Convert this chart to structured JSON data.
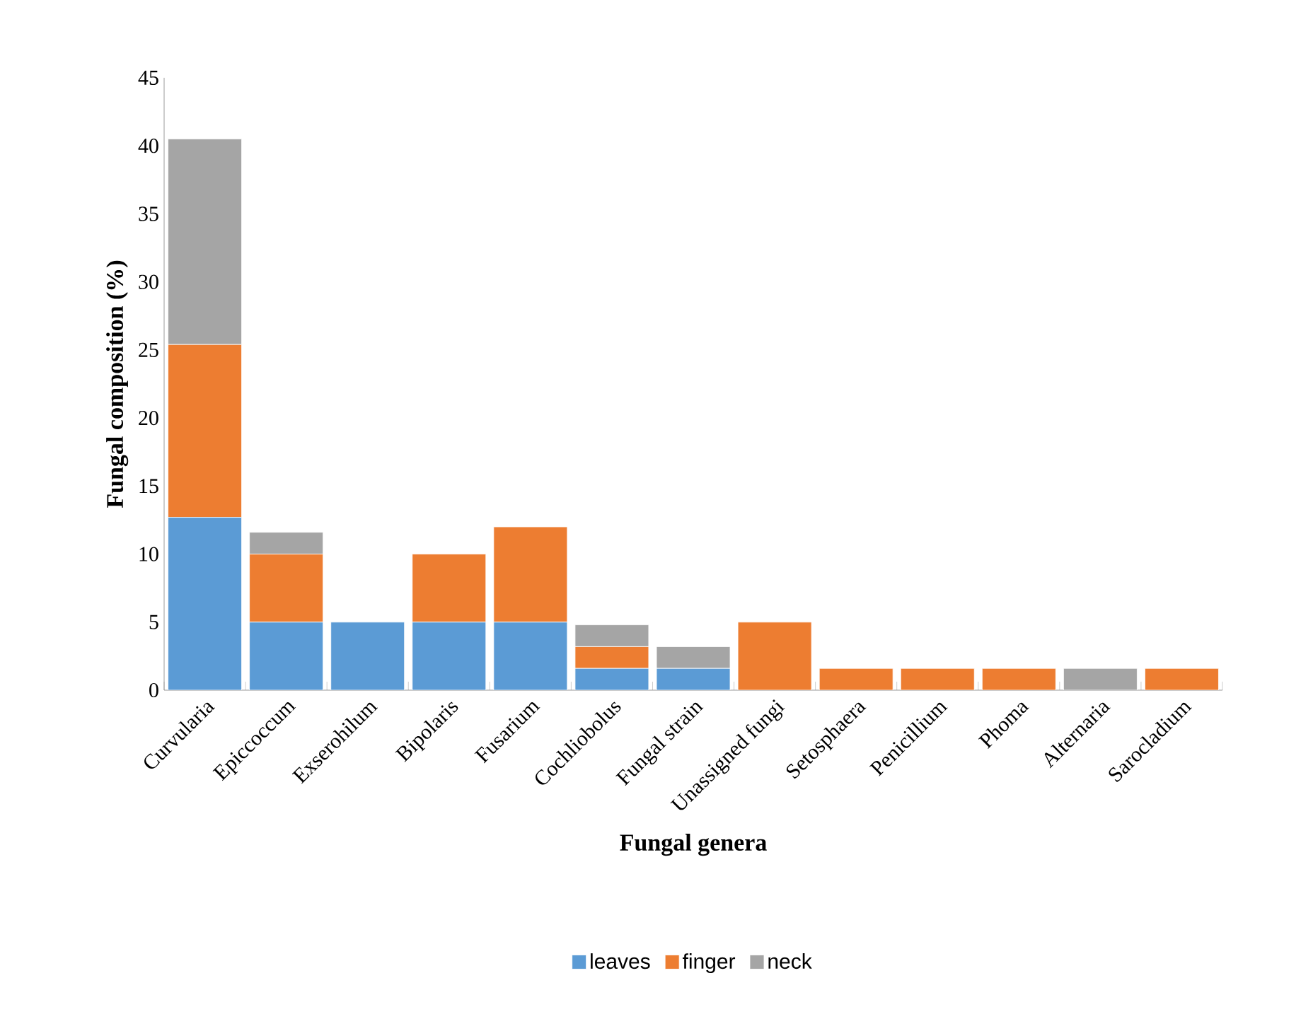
{
  "chart_data": {
    "type": "bar",
    "stacked": true,
    "xlabel": "Fungal genera",
    "ylabel": "Fungal composition (%)",
    "categories": [
      "Curvularia",
      "Epiccoccum",
      "Exserohilum",
      "Bipolaris",
      "Fusarium",
      "Cochliobolus",
      "Fungal strain",
      "Unassigned fungi",
      "Setosphaera",
      "Penicillium",
      "Phoma",
      "Alternaria",
      "Sarocladium"
    ],
    "series": [
      {
        "name": "leaves",
        "color": "#5b9bd5",
        "values": [
          12.7,
          5,
          5,
          5,
          5,
          1.6,
          1.6,
          0,
          0,
          0,
          0,
          0,
          0
        ]
      },
      {
        "name": "finger",
        "color": "#ed7d31",
        "values": [
          12.7,
          5,
          0,
          5,
          7,
          1.6,
          0,
          5,
          1.6,
          1.6,
          1.6,
          0,
          1.6
        ]
      },
      {
        "name": "neck",
        "color": "#a5a5a5",
        "values": [
          15.1,
          1.6,
          0,
          0,
          0,
          1.6,
          1.6,
          0,
          0,
          0,
          0,
          1.6,
          0
        ]
      }
    ],
    "ylim": [
      0,
      45
    ],
    "yticks": [
      0,
      5,
      10,
      15,
      20,
      25,
      30,
      35,
      40,
      45
    ],
    "grid": false,
    "legend": "bottom"
  }
}
